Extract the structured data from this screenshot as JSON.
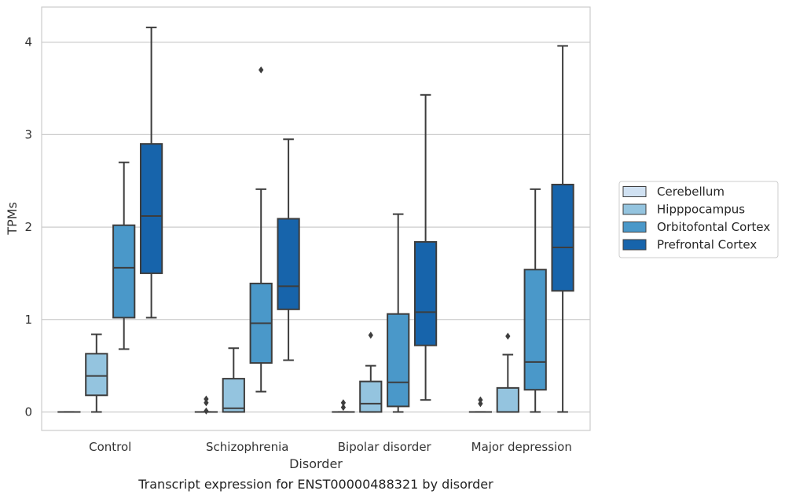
{
  "chart_data": {
    "type": "boxplot",
    "title": "Transcript expression for ENST00000488321 by disorder",
    "xlabel": "Disorder",
    "ylabel": "TPMs",
    "ylim": [
      -0.2,
      4.38
    ],
    "yticks": [
      0,
      1,
      2,
      3,
      4
    ],
    "grid": "horizontal",
    "legend_position": "right",
    "categories": [
      "Control",
      "Schizophrenia",
      "Bipolar disorder",
      "Major depression"
    ],
    "series": [
      {
        "name": "Cerebellum",
        "color": "#d0e1f2",
        "boxes": [
          {
            "whislo": 0,
            "q1": 0,
            "med": 0,
            "q3": 0,
            "whishi": 0,
            "fliers": []
          },
          {
            "whislo": 0,
            "q1": 0,
            "med": 0,
            "q3": 0,
            "whishi": 0,
            "fliers": [
              0.01,
              0.1,
              0.14
            ]
          },
          {
            "whislo": 0,
            "q1": 0,
            "med": 0,
            "q3": 0,
            "whishi": 0,
            "fliers": [
              0.05,
              0.1
            ]
          },
          {
            "whislo": 0,
            "q1": 0,
            "med": 0,
            "q3": 0,
            "whishi": 0,
            "fliers": [
              0.09,
              0.13
            ]
          }
        ]
      },
      {
        "name": "Hipppocampus",
        "color": "#94c4df",
        "boxes": [
          {
            "whislo": 0.0,
            "q1": 0.18,
            "med": 0.39,
            "q3": 0.63,
            "whishi": 0.84,
            "fliers": []
          },
          {
            "whislo": 0.0,
            "q1": 0.0,
            "med": 0.04,
            "q3": 0.36,
            "whishi": 0.69,
            "fliers": []
          },
          {
            "whislo": 0.0,
            "q1": 0.0,
            "med": 0.09,
            "q3": 0.33,
            "whishi": 0.5,
            "fliers": [
              0.83
            ]
          },
          {
            "whislo": 0.0,
            "q1": 0.0,
            "med": 0.0,
            "q3": 0.26,
            "whishi": 0.62,
            "fliers": [
              0.82
            ]
          }
        ]
      },
      {
        "name": "Orbitofontal Cortex",
        "color": "#4a98c9",
        "boxes": [
          {
            "whislo": 0.68,
            "q1": 1.02,
            "med": 1.56,
            "q3": 2.02,
            "whishi": 2.7,
            "fliers": []
          },
          {
            "whislo": 0.22,
            "q1": 0.53,
            "med": 0.96,
            "q3": 1.39,
            "whishi": 2.41,
            "fliers": [
              3.7
            ]
          },
          {
            "whislo": 0.0,
            "q1": 0.06,
            "med": 0.32,
            "q3": 1.06,
            "whishi": 2.14,
            "fliers": []
          },
          {
            "whislo": 0.0,
            "q1": 0.24,
            "med": 0.54,
            "q3": 1.54,
            "whishi": 2.41,
            "fliers": []
          }
        ]
      },
      {
        "name": "Prefrontal Cortex",
        "color": "#1764ab",
        "boxes": [
          {
            "whislo": 1.02,
            "q1": 1.5,
            "med": 2.12,
            "q3": 2.9,
            "whishi": 4.16,
            "fliers": []
          },
          {
            "whislo": 0.56,
            "q1": 1.11,
            "med": 1.36,
            "q3": 2.09,
            "whishi": 2.95,
            "fliers": []
          },
          {
            "whislo": 0.13,
            "q1": 0.72,
            "med": 1.08,
            "q3": 1.84,
            "whishi": 3.43,
            "fliers": []
          },
          {
            "whislo": 0.0,
            "q1": 1.31,
            "med": 1.78,
            "q3": 2.46,
            "whishi": 3.96,
            "fliers": []
          }
        ]
      }
    ]
  }
}
